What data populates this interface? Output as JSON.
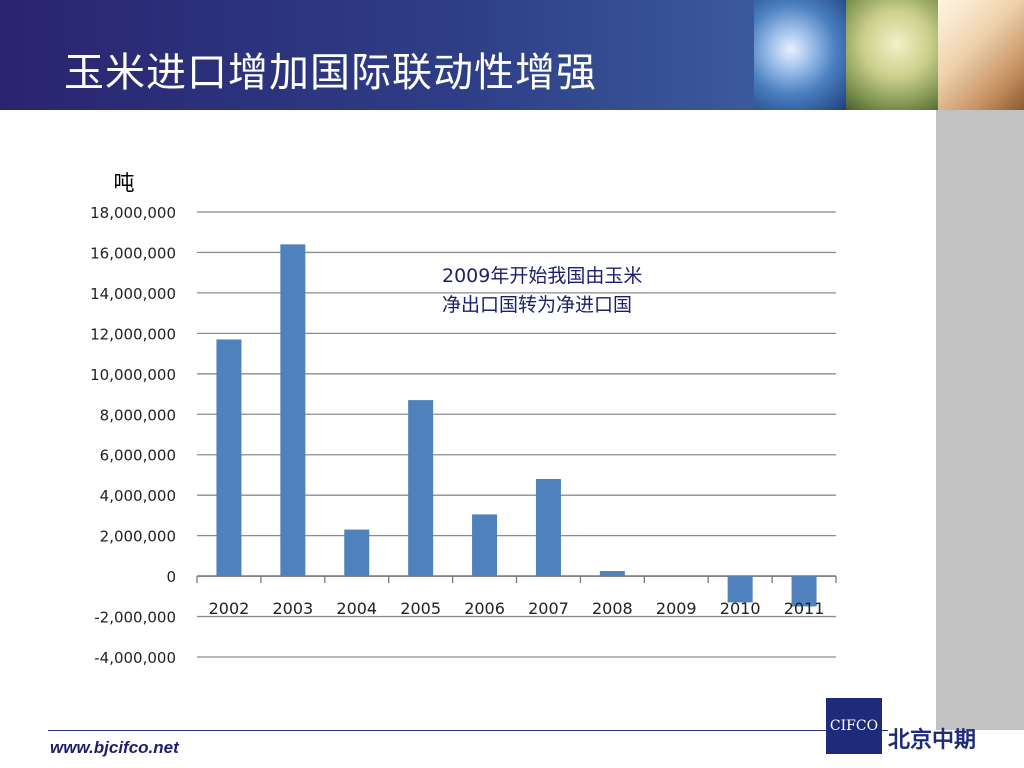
{
  "slide": {
    "title": "玉米进口增加国际联动性增强",
    "annotation": "2009年开始我国由玉米\n净出口国转为净进口国",
    "footer_url": "www.bjcifco.net",
    "logo_abbr": "CIFCO",
    "logo_name": "北京中期"
  },
  "colors": {
    "bar": "#4f81bd",
    "header": "#2a2470",
    "grid": "#8c8c8c"
  },
  "chart_data": {
    "type": "bar",
    "unit_label": "吨",
    "categories": [
      "2002",
      "2003",
      "2004",
      "2005",
      "2006",
      "2007",
      "2008",
      "2009",
      "2010",
      "2011"
    ],
    "values": [
      11700000,
      16400000,
      2300000,
      8700000,
      3050000,
      4800000,
      250000,
      0,
      -1300000,
      -1500000
    ],
    "ylim": [
      -4000000,
      18000000
    ],
    "yticks": [
      -4000000,
      -2000000,
      0,
      2000000,
      4000000,
      6000000,
      8000000,
      10000000,
      12000000,
      14000000,
      16000000,
      18000000
    ],
    "ytick_labels": [
      "-4,000,000",
      "-2,000,000",
      "0",
      "2,000,000",
      "4,000,000",
      "6,000,000",
      "8,000,000",
      "10,000,000",
      "12,000,000",
      "14,000,000",
      "16,000,000",
      "18,000,000"
    ],
    "grid": true,
    "legend": "none"
  }
}
